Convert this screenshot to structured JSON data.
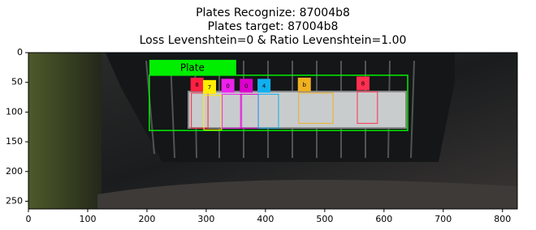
{
  "chart_data": {
    "type": "image",
    "title": [
      "Plates Recognize: 87004b8",
      "Plates target: 87004b8",
      "Loss Levenshtein=0 & Ratio Levenshtein=1.00"
    ],
    "xlim": [
      0,
      825
    ],
    "ylim": [
      263,
      0
    ],
    "xticks": [
      0,
      100,
      200,
      300,
      400,
      500,
      600,
      700,
      800
    ],
    "yticks": [
      0,
      50,
      100,
      150,
      200,
      250
    ],
    "boxes": [
      {
        "label": "Plate",
        "color": "#00ee00",
        "x": [
          204,
          640
        ],
        "y": [
          38,
          131
        ]
      }
    ],
    "chars": [
      {
        "label": "8",
        "color": "#ff2040",
        "x": [
          275,
          303
        ],
        "y": [
          68,
          127
        ]
      },
      {
        "label": "7",
        "color": "#ffee00",
        "x": [
          296,
          326
        ],
        "y": [
          72,
          130
        ]
      },
      {
        "label": "0",
        "color": "#ee22ee",
        "x": [
          327,
          360
        ],
        "y": [
          70,
          127
        ]
      },
      {
        "label": "0",
        "color": "#dd00cc",
        "x": [
          358,
          388
        ],
        "y": [
          70,
          127
        ]
      },
      {
        "label": "4",
        "color": "#10b0f0",
        "x": [
          388,
          422
        ],
        "y": [
          70,
          127
        ]
      },
      {
        "label": "b",
        "color": "#f0b020",
        "x": [
          456,
          514
        ],
        "y": [
          68,
          119
        ]
      },
      {
        "label": "8",
        "color": "#ff3050",
        "x": [
          555,
          589
        ],
        "y": [
          66,
          119
        ]
      }
    ]
  }
}
